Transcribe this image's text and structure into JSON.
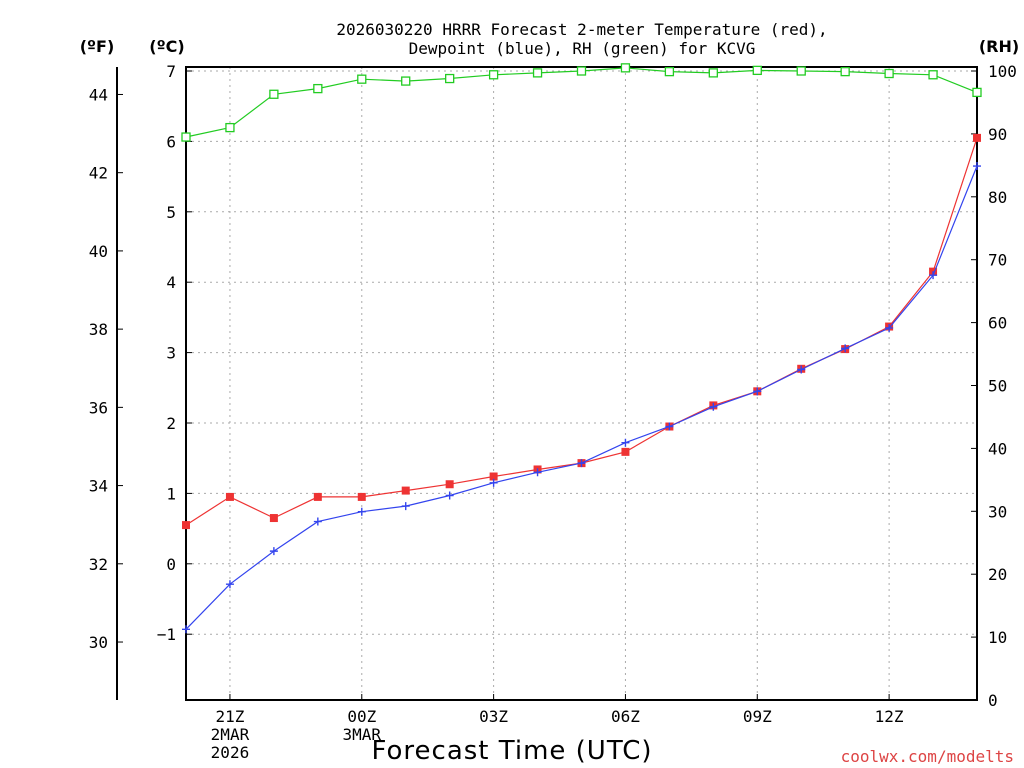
{
  "chart_data": {
    "type": "line",
    "title_line1": "2026030220 HRRR Forecast 2-meter Temperature (red),",
    "title_line2": "Dewpoint (blue), RH (green) for KCVG",
    "xlabel": "Forecast Time (UTC)",
    "credit": "coolwx.com/modelts",
    "units": {
      "f": "(ºF)",
      "c": "(ºC)",
      "rh": "(RH)"
    },
    "x_hours": [
      0,
      1,
      2,
      3,
      4,
      5,
      6,
      7,
      8,
      9,
      10,
      11,
      12,
      13,
      14,
      15,
      16,
      17,
      18
    ],
    "xlim": [
      0,
      18
    ],
    "x_ticks": [
      {
        "h": 1,
        "lines": [
          "21Z",
          "2MAR",
          "2026"
        ]
      },
      {
        "h": 4,
        "lines": [
          "00Z",
          "3MAR"
        ]
      },
      {
        "h": 7,
        "lines": [
          "03Z"
        ]
      },
      {
        "h": 10,
        "lines": [
          "06Z"
        ]
      },
      {
        "h": 13,
        "lines": [
          "09Z"
        ]
      },
      {
        "h": 16,
        "lines": [
          "12Z"
        ]
      }
    ],
    "ylim_c": [
      -1.9,
      7
    ],
    "ylim_rh": [
      0,
      100
    ],
    "c_ticks": [
      -1,
      0,
      1,
      2,
      3,
      4,
      5,
      6,
      7
    ],
    "f_ticks": [
      30,
      32,
      34,
      36,
      38,
      40,
      42,
      44
    ],
    "rh_ticks": [
      0,
      10,
      20,
      30,
      40,
      50,
      60,
      70,
      80,
      90,
      100
    ],
    "grid": true,
    "series": [
      {
        "name": "Temperature",
        "axis": "c",
        "color": "#ee3333",
        "marker": "filled-square",
        "values": [
          0.55,
          0.95,
          0.65,
          0.95,
          0.95,
          1.04,
          1.13,
          1.24,
          1.34,
          1.43,
          1.59,
          1.95,
          2.25,
          2.45,
          2.77,
          3.05,
          3.37,
          4.15,
          6.05
        ]
      },
      {
        "name": "Dewpoint",
        "axis": "c",
        "color": "#3344ee",
        "marker": "plus",
        "values": [
          -0.93,
          -0.29,
          0.18,
          0.6,
          0.74,
          0.82,
          0.97,
          1.15,
          1.3,
          1.43,
          1.72,
          1.95,
          2.23,
          2.45,
          2.76,
          3.06,
          3.35,
          4.1,
          5.65
        ]
      },
      {
        "name": "RH",
        "axis": "rh",
        "color": "#22cc22",
        "marker": "open-square",
        "values": [
          89.5,
          91,
          96.3,
          97.2,
          98.7,
          98.4,
          98.8,
          99.4,
          99.7,
          100,
          100.5,
          99.9,
          99.7,
          100.1,
          100,
          99.9,
          99.6,
          99.4,
          96.6
        ]
      }
    ]
  }
}
